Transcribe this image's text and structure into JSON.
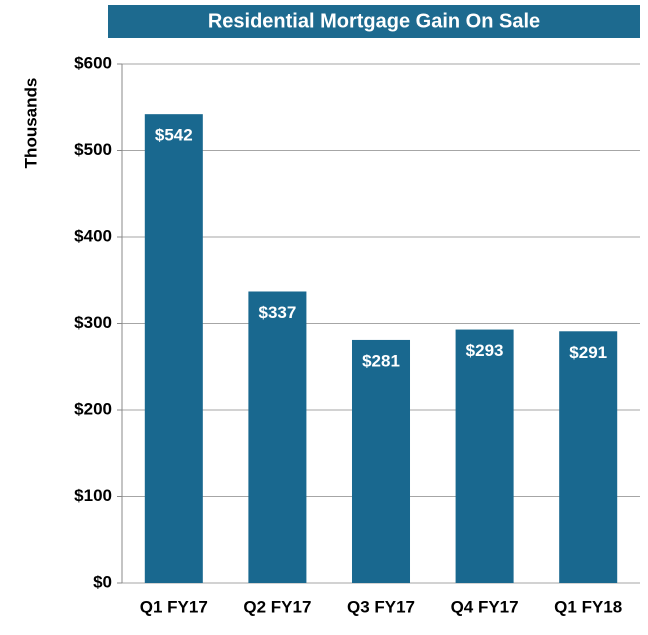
{
  "chart_data": {
    "type": "bar",
    "title": "Residential Mortgage Gain On Sale",
    "y_label": "Thousands",
    "categories": [
      "Q1 FY17",
      "Q2 FY17",
      "Q3 FY17",
      "Q4 FY17",
      "Q1 FY18"
    ],
    "values": [
      542,
      337,
      281,
      293,
      291
    ],
    "value_labels": [
      "$542",
      "$337",
      "$281",
      "$293",
      "$291"
    ],
    "color": "#19688f",
    "ylim": [
      0,
      600
    ],
    "yticks": [
      {
        "value": 0,
        "label": "$0"
      },
      {
        "value": 100,
        "label": "$100"
      },
      {
        "value": 200,
        "label": "$200"
      },
      {
        "value": 300,
        "label": "$300"
      },
      {
        "value": 400,
        "label": "$400"
      },
      {
        "value": 500,
        "label": "$500"
      },
      {
        "value": 600,
        "label": "$600"
      }
    ],
    "grid": true
  }
}
